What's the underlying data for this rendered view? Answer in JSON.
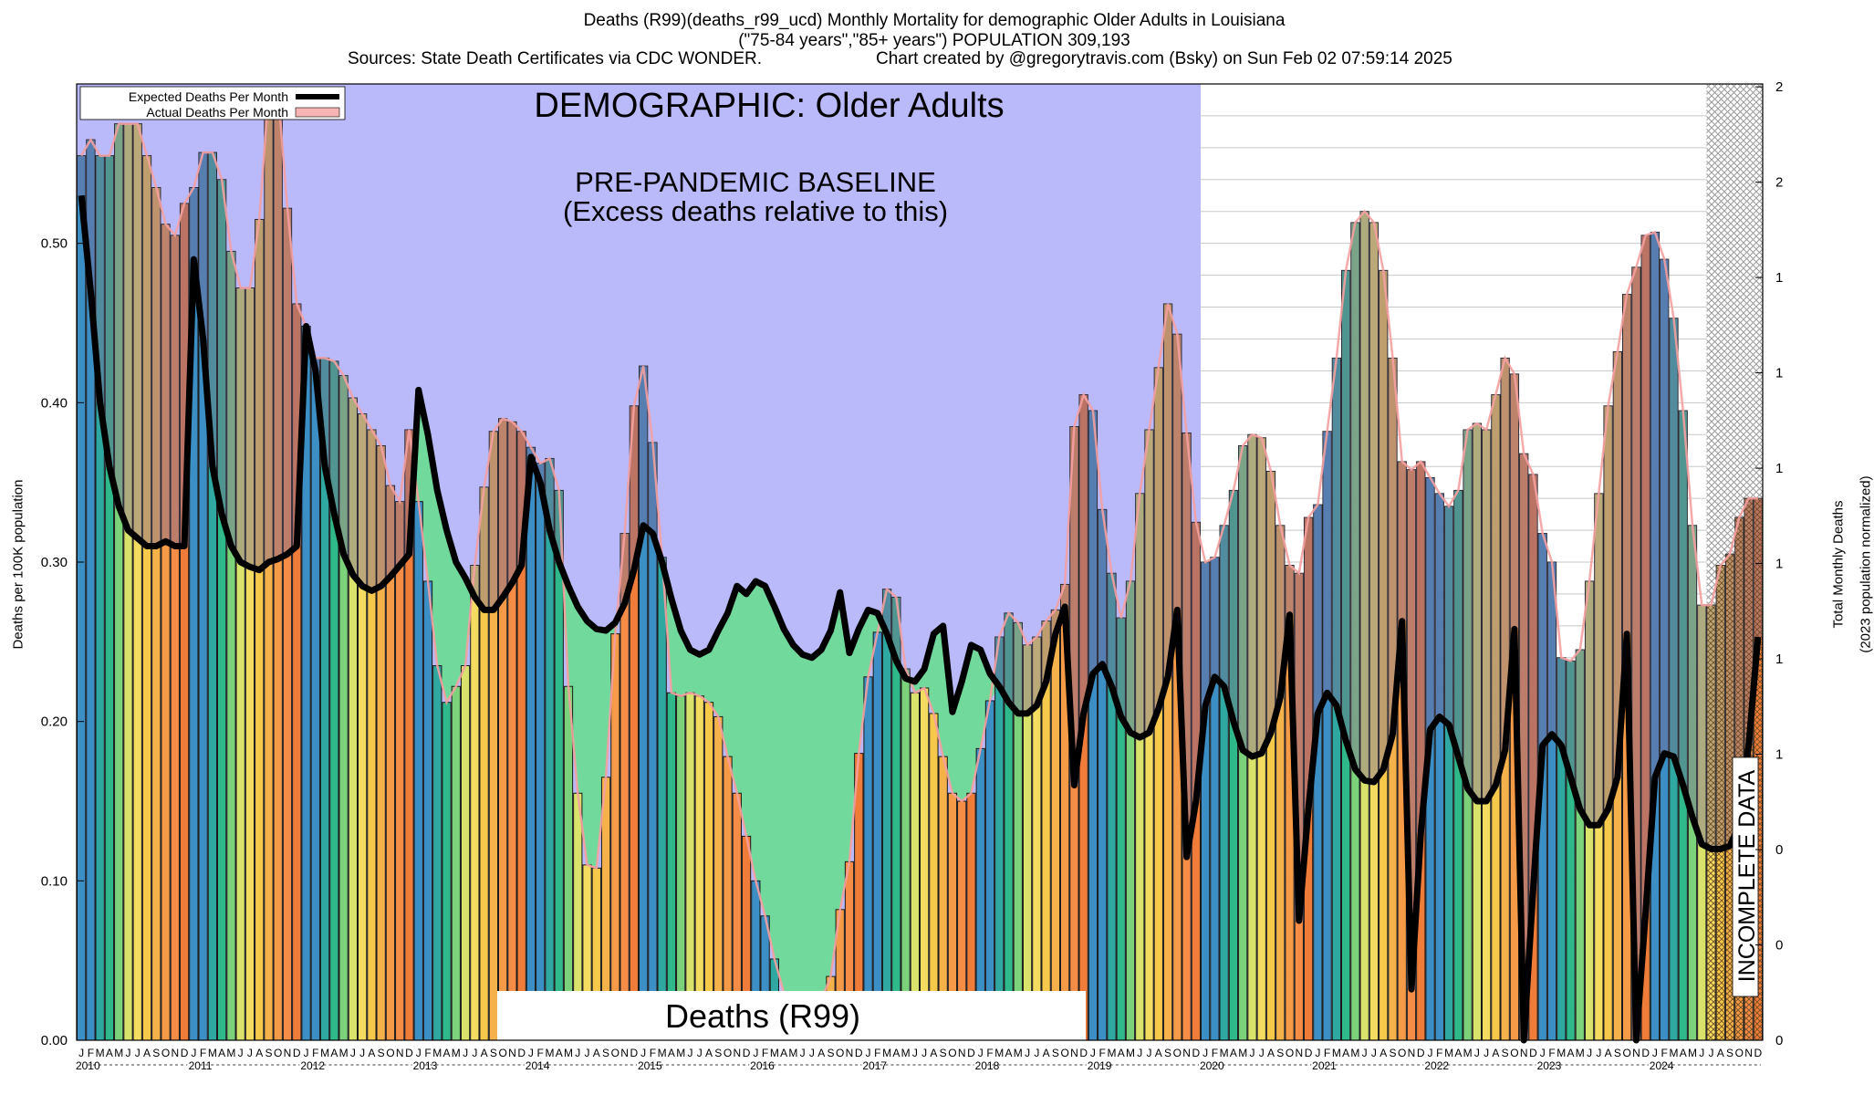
{
  "header": {
    "line1": "Deaths (R99)(deaths_r99_ucd) Monthly Mortality for demographic Older Adults in Louisiana",
    "line2": "(\"75-84 years\",\"85+ years\") POPULATION 309,193",
    "line3_left": "Sources: State Death Certificates via CDC WONDER.",
    "line3_right": "Chart created by @gregorytravis.com (Bsky) on Sun Feb 02 07:59:14 2025"
  },
  "colors": {
    "baseline_fill": "#babafa",
    "green_fill": "#72d99c",
    "excess_line": "#f5a0a0",
    "expected_line": "#000000",
    "hatch": "#c8c8c8",
    "month_colors": [
      "#3b8fc4",
      "#3b8fc4",
      "#2ea8a0",
      "#2fb889",
      "#7cd27a",
      "#d9e26a",
      "#f3dc5f",
      "#f7c94b",
      "#f6b24a",
      "#f59a46",
      "#f58d46",
      "#f07c3a"
    ]
  },
  "chart_data": {
    "type": "bar",
    "title": "DEMOGRAPHIC: Older Adults",
    "baseline_title": "PRE-PANDEMIC BASELINE",
    "baseline_subtitle": "(Excess deaths relative to this)",
    "cause_label": "Deaths (R99)",
    "incomplete_label": "INCOMPLETE DATA",
    "ylabel": "Deaths per 100K population",
    "y2label_line1": "Total Monthly Deaths",
    "y2label_line2": "(2023 population normalized)",
    "ylim": [
      0,
      0.6
    ],
    "yticks": [
      "0.00",
      "0.10",
      "0.20",
      "0.30",
      "0.40",
      "0.50"
    ],
    "y2ticks": [
      "0",
      "0",
      "0",
      "1",
      "1",
      "1",
      "1",
      "1",
      "1",
      "2",
      "2"
    ],
    "month_letters": [
      "J",
      "F",
      "M",
      "A",
      "M",
      "J",
      "J",
      "A",
      "S",
      "O",
      "N",
      "D"
    ],
    "years": [
      "2010",
      "2011",
      "2012",
      "2013",
      "2014",
      "2015",
      "2016",
      "2017",
      "2018",
      "2019",
      "2020",
      "2021",
      "2022",
      "2023",
      "2024"
    ],
    "legend": [
      "Expected Deaths Per Month",
      "Actual Deaths Per Month"
    ],
    "baseline_start": "2010-01",
    "baseline_end": "2019-12",
    "incomplete_start": "2024-07",
    "actual": [
      0.555,
      0.565,
      0.555,
      0.555,
      0.575,
      0.575,
      0.575,
      0.555,
      0.535,
      0.512,
      0.505,
      0.525,
      0.535,
      0.557,
      0.557,
      0.54,
      0.495,
      0.472,
      0.472,
      0.515,
      0.595,
      0.595,
      0.522,
      0.462,
      0.448,
      0.428,
      0.428,
      0.426,
      0.417,
      0.403,
      0.393,
      0.383,
      0.373,
      0.348,
      0.338,
      0.383,
      0.338,
      0.288,
      0.235,
      0.212,
      0.222,
      0.235,
      0.298,
      0.347,
      0.382,
      0.39,
      0.388,
      0.382,
      0.372,
      0.362,
      0.365,
      0.345,
      0.222,
      0.155,
      0.11,
      0.108,
      0.165,
      0.255,
      0.318,
      0.398,
      0.423,
      0.375,
      0.303,
      0.218,
      0.216,
      0.218,
      0.216,
      0.212,
      0.203,
      0.178,
      0.155,
      0.128,
      0.1,
      0.078,
      0.051,
      0.03,
      0.02,
      0.018,
      0.02,
      0.025,
      0.04,
      0.082,
      0.112,
      0.18,
      0.228,
      0.256,
      0.283,
      0.278,
      0.233,
      0.218,
      0.221,
      0.205,
      0.178,
      0.155,
      0.15,
      0.155,
      0.183,
      0.213,
      0.253,
      0.268,
      0.262,
      0.248,
      0.253,
      0.263,
      0.27,
      0.286,
      0.385,
      0.405,
      0.395,
      0.333,
      0.293,
      0.265,
      0.288,
      0.343,
      0.383,
      0.422,
      0.462,
      0.443,
      0.381,
      0.325,
      0.3,
      0.303,
      0.323,
      0.345,
      0.373,
      0.38,
      0.378,
      0.357,
      0.323,
      0.298,
      0.293,
      0.328,
      0.336,
      0.382,
      0.428,
      0.483,
      0.513,
      0.52,
      0.513,
      0.483,
      0.428,
      0.363,
      0.358,
      0.363,
      0.353,
      0.343,
      0.335,
      0.345,
      0.383,
      0.387,
      0.383,
      0.405,
      0.428,
      0.418,
      0.368,
      0.355,
      0.318,
      0.3,
      0.24,
      0.238,
      0.245,
      0.288,
      0.343,
      0.398,
      0.432,
      0.468,
      0.485,
      0.505,
      0.507,
      0.49,
      0.453,
      0.395,
      0.323,
      0.273,
      0.273,
      0.298,
      0.305,
      0.328,
      0.34,
      0.34
    ],
    "expected": [
      0.53,
      0.47,
      0.4,
      0.36,
      0.335,
      0.32,
      0.315,
      0.31,
      0.31,
      0.313,
      0.31,
      0.31,
      0.49,
      0.44,
      0.36,
      0.33,
      0.31,
      0.3,
      0.297,
      0.295,
      0.3,
      0.302,
      0.305,
      0.31,
      0.448,
      0.42,
      0.36,
      0.33,
      0.305,
      0.292,
      0.285,
      0.282,
      0.285,
      0.291,
      0.298,
      0.305,
      0.408,
      0.38,
      0.345,
      0.32,
      0.3,
      0.29,
      0.278,
      0.27,
      0.27,
      0.278,
      0.287,
      0.298,
      0.366,
      0.35,
      0.32,
      0.3,
      0.285,
      0.272,
      0.263,
      0.258,
      0.257,
      0.262,
      0.274,
      0.295,
      0.323,
      0.318,
      0.3,
      0.277,
      0.257,
      0.245,
      0.242,
      0.245,
      0.257,
      0.268,
      0.285,
      0.28,
      0.288,
      0.285,
      0.272,
      0.258,
      0.248,
      0.242,
      0.24,
      0.245,
      0.257,
      0.281,
      0.243,
      0.258,
      0.27,
      0.268,
      0.255,
      0.238,
      0.227,
      0.225,
      0.233,
      0.255,
      0.26,
      0.206,
      0.225,
      0.248,
      0.245,
      0.23,
      0.222,
      0.212,
      0.205,
      0.205,
      0.21,
      0.225,
      0.255,
      0.272,
      0.16,
      0.205,
      0.23,
      0.236,
      0.222,
      0.203,
      0.193,
      0.19,
      0.193,
      0.208,
      0.228,
      0.27,
      0.115,
      0.15,
      0.21,
      0.228,
      0.222,
      0.2,
      0.182,
      0.178,
      0.18,
      0.193,
      0.215,
      0.267,
      0.075,
      0.145,
      0.205,
      0.218,
      0.21,
      0.188,
      0.17,
      0.163,
      0.162,
      0.17,
      0.192,
      0.263,
      0.032,
      0.13,
      0.195,
      0.203,
      0.198,
      0.178,
      0.158,
      0.15,
      0.15,
      0.16,
      0.182,
      0.258,
      0.0,
      0.095,
      0.185,
      0.192,
      0.185,
      0.165,
      0.145,
      0.135,
      0.135,
      0.145,
      0.165,
      0.255,
      0.0,
      0.08,
      0.165,
      0.18,
      0.178,
      0.16,
      0.14,
      0.123,
      0.12,
      0.12,
      0.122,
      0.135,
      0.185,
      0.253
    ]
  }
}
